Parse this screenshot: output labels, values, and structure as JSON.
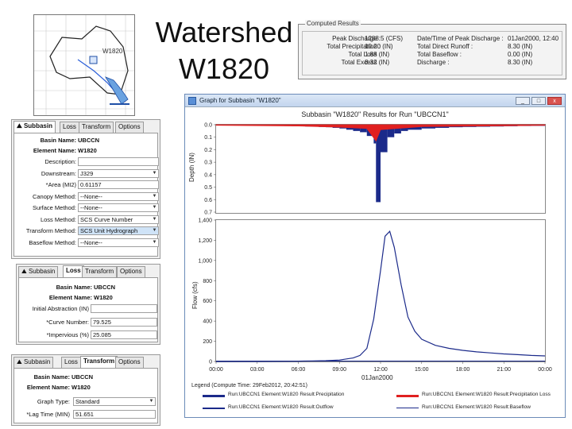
{
  "slide": {
    "title_line1": "Watershed",
    "title_line2": "W1820"
  },
  "map": {
    "label": "W1820"
  },
  "results": {
    "legend": "Computed Results",
    "left": [
      {
        "label": "Peak Discharge :",
        "value": "1288.5 (CFS)"
      },
      {
        "label": "Total Precipitation :",
        "value": "10.20 (IN)"
      },
      {
        "label": "Total Loss :",
        "value": "1.88 (IN)"
      },
      {
        "label": "Total Excess :",
        "value": "8.32 (IN)"
      }
    ],
    "right": [
      {
        "label": "Date/Time of Peak Discharge :",
        "value": "01Jan2000, 12:40"
      },
      {
        "label": "Total Direct Runoff :",
        "value": "8.30 (IN)"
      },
      {
        "label": "Total Baseflow :",
        "value": "0.00 (IN)"
      },
      {
        "label": "Discharge :",
        "value": "8.30 (IN)"
      }
    ]
  },
  "panel1": {
    "tabs": [
      "Subbasin",
      "Loss",
      "Transform",
      "Options"
    ],
    "fields": [
      {
        "label": "Basin Name:",
        "value": "UBCCN",
        "kind": "text"
      },
      {
        "label": "Element Name:",
        "value": "W1820",
        "kind": "text"
      },
      {
        "label": "Description:",
        "value": "",
        "kind": "input"
      },
      {
        "label": "Downstream:",
        "value": "J329",
        "kind": "select"
      },
      {
        "label": "*Area (MI2)",
        "value": "0.61157",
        "kind": "input"
      },
      {
        "label": "Canopy Method:",
        "value": "--None--",
        "kind": "select"
      },
      {
        "label": "Surface Method:",
        "value": "--None--",
        "kind": "select"
      },
      {
        "label": "Loss Method:",
        "value": "SCS Curve Number",
        "kind": "select"
      },
      {
        "label": "Transform Method:",
        "value": "SCS Unit Hydrograph",
        "kind": "select"
      },
      {
        "label": "Baseflow Method:",
        "value": "--None--",
        "kind": "select"
      }
    ]
  },
  "panel2": {
    "tabs": [
      "Subbasin",
      "Loss",
      "Transform",
      "Options"
    ],
    "fields": [
      {
        "label": "Basin Name:",
        "value": "UBCCN",
        "kind": "text"
      },
      {
        "label": "Element Name:",
        "value": "W1820",
        "kind": "text"
      },
      {
        "label": "Initial Abstraction (IN)",
        "value": "",
        "kind": "input"
      },
      {
        "label": "*Curve Number:",
        "value": "79.525",
        "kind": "input"
      },
      {
        "label": "*Impervious (%)",
        "value": "25.085",
        "kind": "input"
      }
    ]
  },
  "panel3": {
    "tabs": [
      "Subbasin",
      "Loss",
      "Transform",
      "Options"
    ],
    "fields": [
      {
        "label": "Basin Name:",
        "value": "UBCCN",
        "kind": "text"
      },
      {
        "label": "Element Name:",
        "value": "W1820",
        "kind": "text"
      },
      {
        "label": "Graph Type:",
        "value": "Standard",
        "kind": "select"
      },
      {
        "label": "*Lag Time (MIN)",
        "value": "51.651",
        "kind": "input"
      }
    ]
  },
  "graph": {
    "window_title": "Graph for Subbasin \"W1820\"",
    "plot_title": "Subbasin \"W1820\" Results for Run \"UBCCN1\"",
    "depth_label": "Depth (IN)",
    "flow_label": "Flow (cfs)",
    "x_caption": "01Jan2000",
    "legend_title": "Legend (Compute Time: 29Feb2012, 20:42:51)",
    "legend": [
      {
        "text": "Run:UBCCN1 Element:W1820 Result:Precipitation",
        "color": "#1b2a8a"
      },
      {
        "text": "Run:UBCCN1 Element:W1820 Result:Precipitation Loss",
        "color": "#e02020"
      },
      {
        "text": "Run:UBCCN1 Element:W1820 Result:Outflow",
        "color": "#1b2a8a"
      },
      {
        "text": "Run:UBCCN1 Element:W1820 Result:Baseflow",
        "color": "#1b2a8a"
      }
    ],
    "btn_min": "_",
    "btn_max": "□",
    "btn_close": "x"
  },
  "chart_data": {
    "type": "line",
    "x": [
      "00:00",
      "03:00",
      "06:00",
      "09:00",
      "12:00",
      "15:00",
      "18:00",
      "21:00",
      "00:00"
    ],
    "depth_ticks": [
      "0.0",
      "0.1",
      "0.2",
      "0.3",
      "0.4",
      "0.5",
      "0.6",
      "0.7"
    ],
    "flow_ticks": [
      "0",
      "200",
      "400",
      "600",
      "800",
      "1,000",
      "1,200",
      "1,400"
    ],
    "precipitation_in": [
      [
        0,
        0.005
      ],
      [
        0.5,
        0.005
      ],
      [
        1,
        0.006
      ],
      [
        1.5,
        0.006
      ],
      [
        2,
        0.006
      ],
      [
        2.5,
        0.007
      ],
      [
        3,
        0.007
      ],
      [
        3.5,
        0.008
      ],
      [
        4,
        0.008
      ],
      [
        4.5,
        0.009
      ],
      [
        5,
        0.01
      ],
      [
        5.5,
        0.011
      ],
      [
        6,
        0.012
      ],
      [
        6.5,
        0.014
      ],
      [
        7,
        0.016
      ],
      [
        7.5,
        0.018
      ],
      [
        8,
        0.02
      ],
      [
        8.5,
        0.025
      ],
      [
        9,
        0.03
      ],
      [
        9.5,
        0.04
      ],
      [
        10,
        0.05
      ],
      [
        10.5,
        0.06
      ],
      [
        11,
        0.09
      ],
      [
        11.5,
        0.15
      ],
      [
        11.667,
        0.62
      ],
      [
        12,
        0.22
      ],
      [
        12.5,
        0.1
      ],
      [
        13,
        0.07
      ],
      [
        13.5,
        0.05
      ],
      [
        14,
        0.04
      ],
      [
        15,
        0.03
      ],
      [
        16,
        0.025
      ],
      [
        17,
        0.02
      ],
      [
        18,
        0.018
      ],
      [
        19,
        0.016
      ],
      [
        20,
        0.014
      ],
      [
        21,
        0.012
      ],
      [
        22,
        0.01
      ],
      [
        23,
        0.009
      ],
      [
        24,
        0.008
      ]
    ],
    "precip_loss_in": [
      [
        0,
        0.005
      ],
      [
        6,
        0.01
      ],
      [
        9,
        0.02
      ],
      [
        11,
        0.03
      ],
      [
        11.667,
        0.13
      ],
      [
        12,
        0.04
      ],
      [
        15,
        0.015
      ],
      [
        24,
        0.005
      ]
    ],
    "outflow_cfs": [
      [
        0,
        0
      ],
      [
        3,
        0.5
      ],
      [
        6,
        3
      ],
      [
        7,
        5
      ],
      [
        8,
        8
      ],
      [
        9,
        14
      ],
      [
        10,
        35
      ],
      [
        10.5,
        60
      ],
      [
        11,
        130
      ],
      [
        11.5,
        420
      ],
      [
        12,
        900
      ],
      [
        12.33,
        1240
      ],
      [
        12.67,
        1288.5
      ],
      [
        13,
        1130
      ],
      [
        13.5,
        760
      ],
      [
        14,
        440
      ],
      [
        14.5,
        300
      ],
      [
        15,
        220
      ],
      [
        16,
        160
      ],
      [
        17,
        130
      ],
      [
        18,
        110
      ],
      [
        19,
        95
      ],
      [
        20,
        85
      ],
      [
        21,
        75
      ],
      [
        22,
        68
      ],
      [
        23,
        60
      ],
      [
        24,
        55
      ]
    ],
    "baseflow_cfs": [
      [
        0,
        0
      ],
      [
        24,
        0
      ]
    ],
    "ylim_depth": [
      0,
      0.7
    ],
    "ylim_flow": [
      0,
      1400
    ],
    "xlim_hours": [
      0,
      24
    ]
  }
}
